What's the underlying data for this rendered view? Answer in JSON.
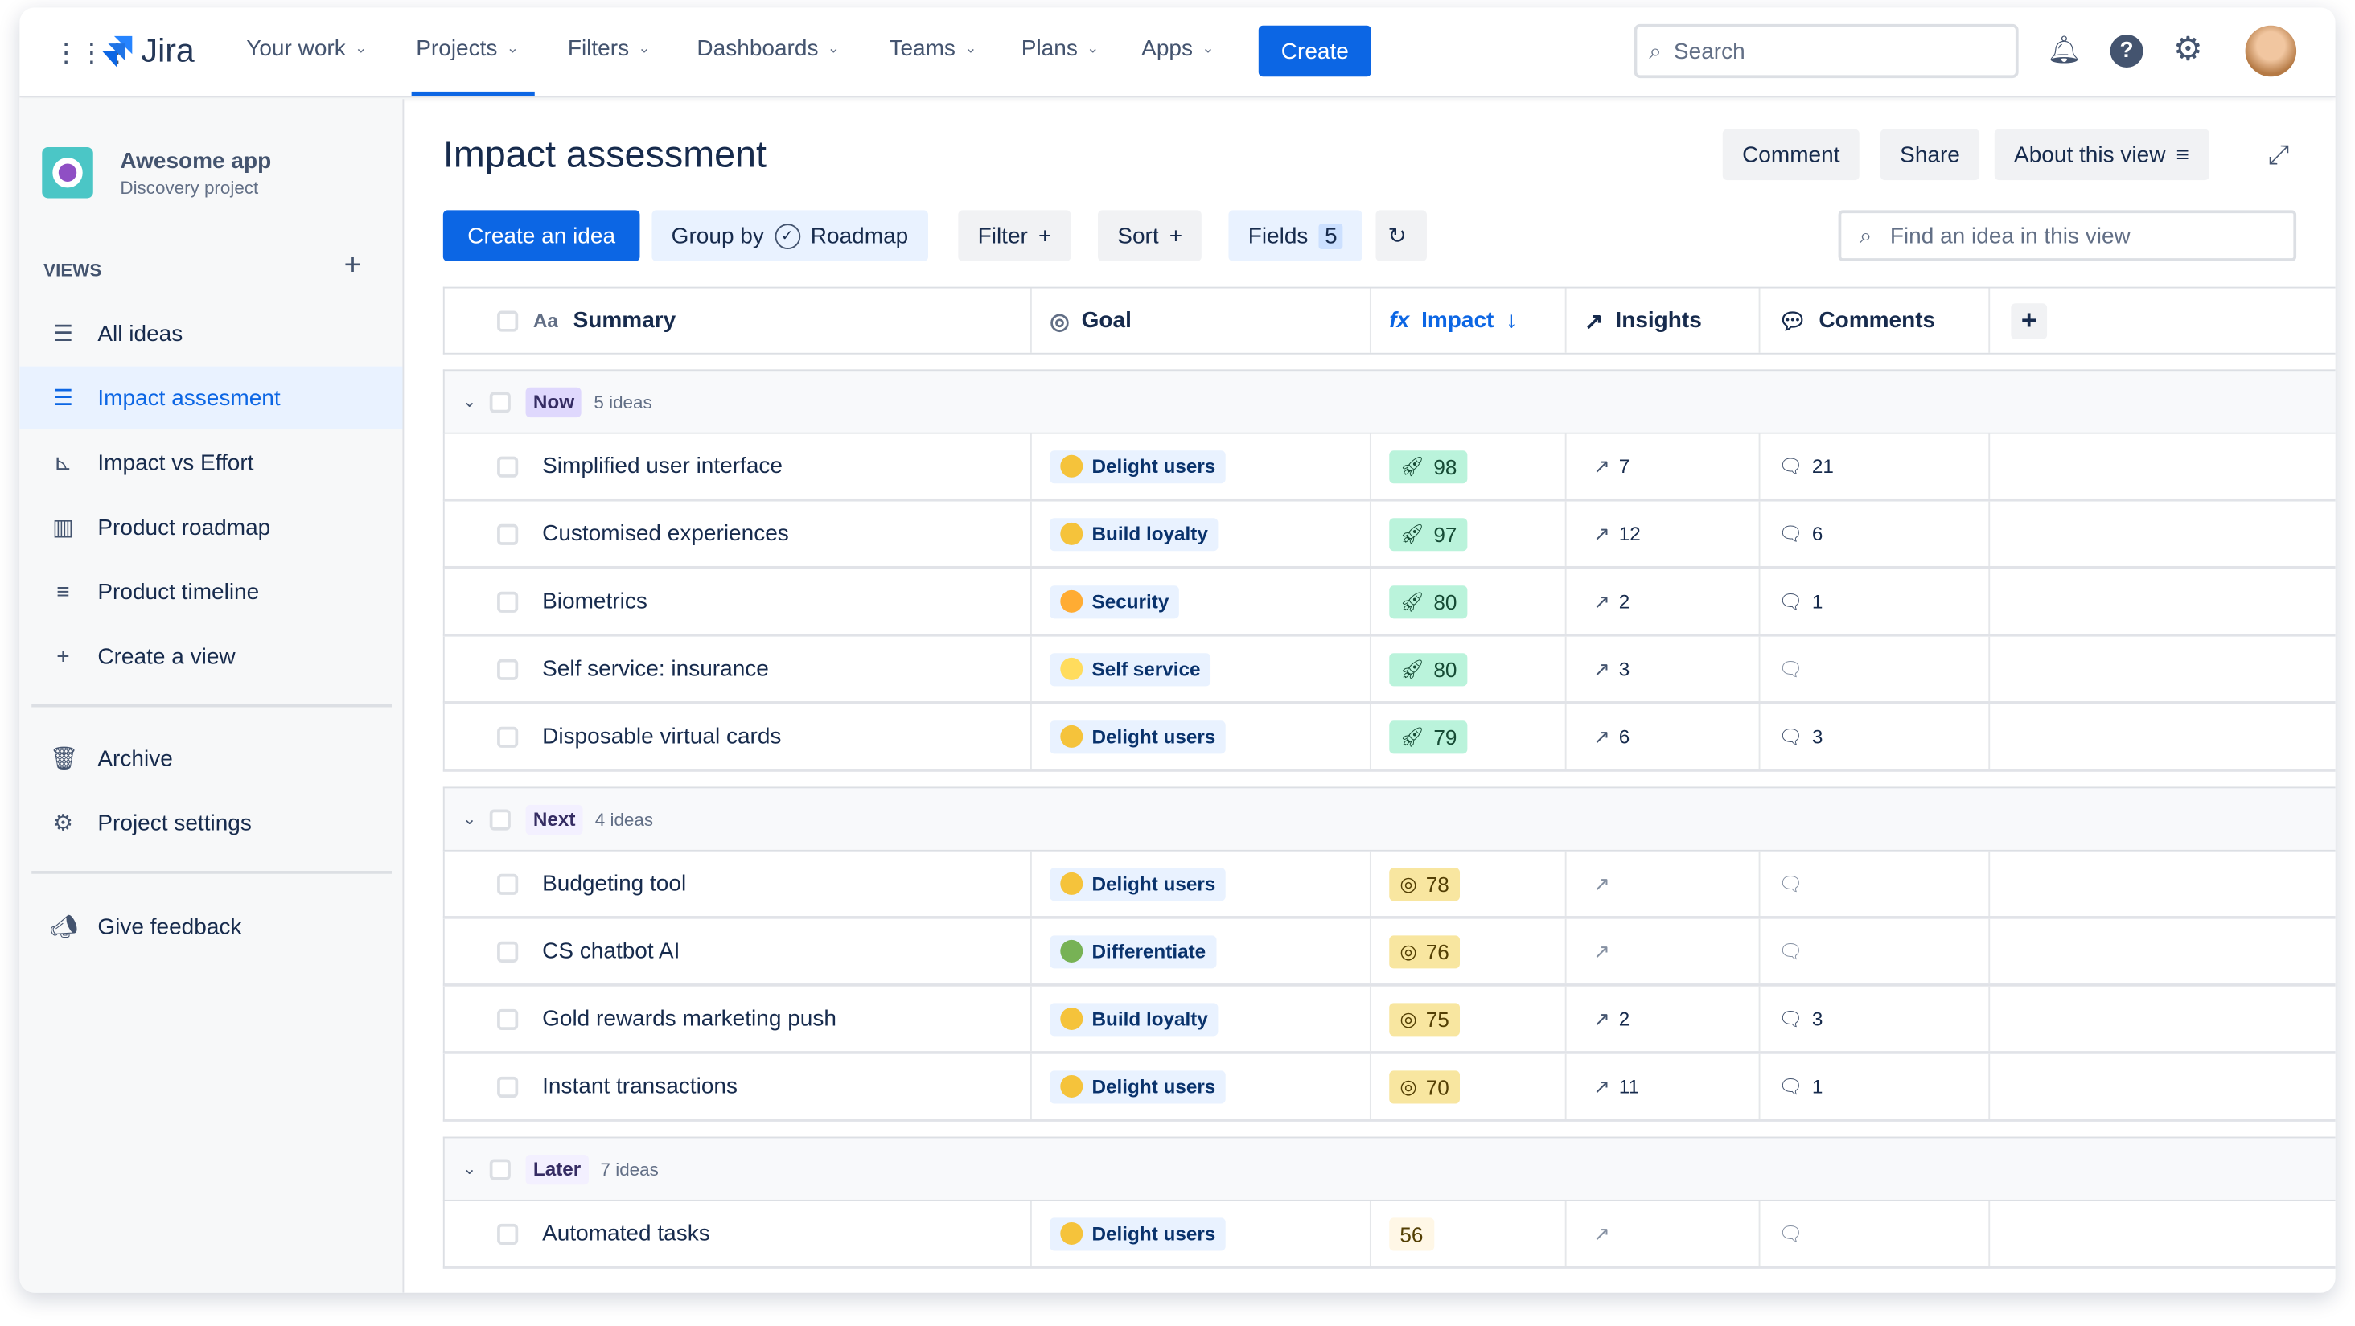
{
  "topnav": {
    "product": "Jira",
    "items": [
      "Your work",
      "Projects",
      "Filters",
      "Dashboards",
      "Teams",
      "Plans",
      "Apps"
    ],
    "active": "Projects",
    "create": "Create",
    "search_placeholder": "Search"
  },
  "project": {
    "name": "Awesome app",
    "type": "Discovery project"
  },
  "sidebar": {
    "views_label": "VIEWS",
    "items": [
      {
        "label": "All ideas",
        "icon": "list-icon"
      },
      {
        "label": "Impact assesment",
        "icon": "list-icon",
        "selected": true
      },
      {
        "label": "Impact vs Effort",
        "icon": "scatter-icon"
      },
      {
        "label": "Product roadmap",
        "icon": "board-icon"
      },
      {
        "label": "Product timeline",
        "icon": "timeline-icon"
      },
      {
        "label": "Create a view",
        "icon": "plus-icon"
      }
    ],
    "secondary": [
      {
        "label": "Archive",
        "icon": "trash-icon"
      },
      {
        "label": "Project settings",
        "icon": "gear-icon"
      }
    ],
    "feedback": "Give feedback"
  },
  "page": {
    "title": "Impact assessment",
    "comment": "Comment",
    "share": "Share",
    "about": "About this view"
  },
  "toolbar": {
    "create": "Create an idea",
    "group_by": "Group by",
    "group_value": "Roadmap",
    "filter": "Filter",
    "sort": "Sort",
    "fields": "Fields",
    "fields_count": "5",
    "find_placeholder": "Find an idea in this view"
  },
  "columns": {
    "summary": "Summary",
    "goal": "Goal",
    "impact": "Impact",
    "insights": "Insights",
    "comments": "Comments",
    "summary_icon": "Aa",
    "impact_icon": "fx"
  },
  "colors": {
    "accent": "#0c66e4",
    "impact_now": "#baf3db",
    "impact_next": "#f8e6a0",
    "impact_later": "#fff7e6"
  },
  "groups": [
    {
      "label": "Now",
      "count": "5 ideas",
      "color": "#dfd8fd",
      "impact_bg": "#baf3db",
      "impact_icon": "rocket",
      "rows": [
        {
          "summary": "Simplified user interface",
          "goal": "Delight users",
          "impact": "98",
          "insights": "7",
          "comments": "21"
        },
        {
          "summary": "Customised experiences",
          "goal": "Build loyalty",
          "impact": "97",
          "insights": "12",
          "comments": "6"
        },
        {
          "summary": "Biometrics",
          "goal": "Security",
          "impact": "80",
          "insights": "2",
          "comments": "1"
        },
        {
          "summary": "Self service: insurance",
          "goal": "Self service",
          "impact": "80",
          "insights": "3",
          "comments": ""
        },
        {
          "summary": "Disposable virtual cards",
          "goal": "Delight users",
          "impact": "79",
          "insights": "6",
          "comments": "3"
        }
      ]
    },
    {
      "label": "Next",
      "count": "4 ideas",
      "color": "#f3f0ff",
      "impact_bg": "#f8e6a0",
      "impact_icon": "target",
      "rows": [
        {
          "summary": "Budgeting tool",
          "goal": "Delight users",
          "impact": "78",
          "insights": "",
          "comments": ""
        },
        {
          "summary": "CS chatbot AI",
          "goal": "Differentiate",
          "impact": "76",
          "insights": "",
          "comments": ""
        },
        {
          "summary": "Gold rewards marketing push",
          "goal": "Build loyalty",
          "impact": "75",
          "insights": "2",
          "comments": "3"
        },
        {
          "summary": "Instant transactions",
          "goal": "Delight users",
          "impact": "70",
          "insights": "11",
          "comments": "1"
        }
      ]
    },
    {
      "label": "Later",
      "count": "7 ideas",
      "color": "#f3f0ff",
      "impact_bg": "#fff7e6",
      "impact_icon": "",
      "rows": [
        {
          "summary": "Automated tasks",
          "goal": "Delight users",
          "impact": "56",
          "insights": "",
          "comments": ""
        }
      ]
    }
  ]
}
